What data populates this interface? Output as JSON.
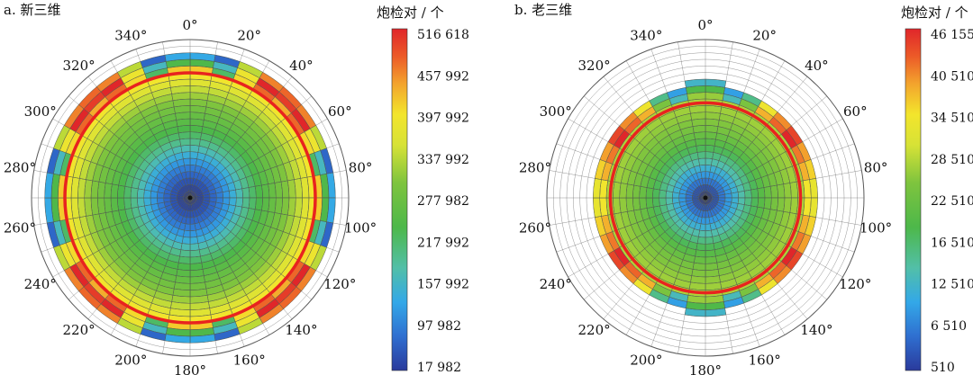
{
  "chart_data": [
    {
      "type": "heatmap",
      "subtype": "polar",
      "title": "a. 新三维",
      "colorbar_title": "炮检对 / 个",
      "colorbar_ticks": [
        "516 618",
        "457 992",
        "397 992",
        "337 992",
        "277 982",
        "217 992",
        "157 992",
        "97 982",
        "17 982"
      ],
      "colorbar_range": [
        17982,
        516618
      ],
      "angle_labels": [
        "0°",
        "20°",
        "40°",
        "60°",
        "80°",
        "100°",
        "120°",
        "140°",
        "160°",
        "180°",
        "200°",
        "220°",
        "240°",
        "260°",
        "280°",
        "300°",
        "320°",
        "340°"
      ],
      "red_circle_fraction": 0.79,
      "pattern": {
        "radial_values": [
          17982,
          30000,
          50000,
          75000,
          105000,
          140000,
          175000,
          205000,
          230000,
          250000,
          270000,
          290000,
          315000,
          345000,
          380000,
          420000
        ],
        "rim_fraction": 0.78,
        "lobe_centers_deg": [
          45,
          135,
          225,
          315
        ],
        "lobe_width_deg": 32,
        "lobe_rings": [
          [
            430000,
            470000,
            400000,
            210000
          ],
          [
            500000,
            516618,
            380000,
            150000
          ],
          [
            470000,
            455000,
            330000,
            60000
          ]
        ],
        "base_rings": [
          410000,
          230000,
          120000
        ]
      }
    },
    {
      "type": "heatmap",
      "subtype": "polar",
      "title": "b. 老三维",
      "colorbar_title": "炮检对 / 个",
      "colorbar_ticks": [
        "46 155",
        "40 510",
        "34 510",
        "28 510",
        "22 510",
        "16 510",
        "12 510",
        "6 510",
        "510"
      ],
      "colorbar_range": [
        510,
        46155
      ],
      "angle_labels": [
        "0°",
        "20°",
        "40°",
        "60°",
        "80°",
        "100°",
        "120°",
        "140°",
        "160°",
        "180°",
        "200°",
        "220°",
        "240°",
        "260°",
        "280°",
        "300°",
        "320°",
        "340°"
      ],
      "red_circle_fraction": 0.6,
      "pattern": {
        "radial_values": [
          510,
          3500,
          7000,
          10500,
          14000,
          17000,
          20000,
          22500,
          24500,
          26000,
          27000,
          28000,
          29000
        ],
        "rim_fraction": 0.62,
        "lobe_centers_deg": [
          90,
          270
        ],
        "lobe_width_deg": 75,
        "lobe_rings": [
          [
            31000,
            34500,
            38000,
            41000,
            44000,
            46155,
            42000,
            38000,
            33000,
            25000,
            13000
          ],
          [
            30000,
            33000,
            36000,
            39000,
            42000,
            44000,
            40000,
            34000,
            26000,
            16000,
            9000
          ]
        ],
        "base_rings": [
          27000,
          20000,
          12000
        ]
      }
    }
  ]
}
